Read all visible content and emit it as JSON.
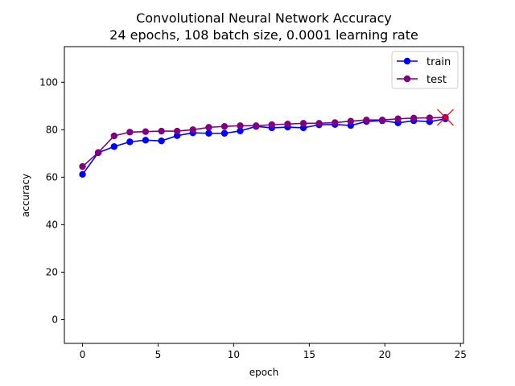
{
  "chart_data": {
    "type": "line",
    "title_line1": "Convolutional Neural Network Accuracy",
    "title_line2": "24 epochs, 108 batch size, 0.0001 learning rate",
    "xlabel": "epoch",
    "ylabel": "accuracy",
    "xlim": [
      -1.2,
      25.2
    ],
    "ylim": [
      -10,
      115
    ],
    "xticks": [
      0,
      5,
      10,
      15,
      20,
      25
    ],
    "yticks": [
      0,
      20,
      40,
      60,
      80,
      100
    ],
    "grid": false,
    "legend_position": "top-right",
    "x": [
      0,
      1.04,
      2.09,
      3.13,
      4.17,
      5.22,
      6.26,
      7.3,
      8.35,
      9.39,
      10.43,
      11.48,
      12.52,
      13.57,
      14.61,
      15.65,
      16.7,
      17.74,
      18.78,
      19.83,
      20.87,
      21.91,
      22.96,
      24
    ],
    "series": [
      {
        "name": "train",
        "color": "#0000ff",
        "values": [
          61.2,
          70.3,
          72.9,
          74.9,
          75.6,
          75.3,
          77.5,
          78.7,
          78.5,
          78.5,
          79.5,
          81.4,
          80.8,
          81.1,
          80.8,
          82.1,
          82.2,
          81.8,
          83.5,
          83.8,
          82.9,
          83.8,
          83.4,
          84.6
        ]
      },
      {
        "name": "test",
        "color": "#800080",
        "values": [
          64.5,
          70.4,
          77.4,
          79.0,
          79.2,
          79.4,
          79.4,
          80.0,
          81.0,
          81.4,
          81.7,
          81.7,
          82.1,
          82.4,
          82.7,
          82.7,
          83.0,
          83.6,
          84.1,
          84.1,
          84.6,
          84.9,
          85.0,
          85.2
        ]
      }
    ],
    "marker_x": {
      "x": 24,
      "y": 85.2,
      "color": "#ff0000"
    }
  }
}
